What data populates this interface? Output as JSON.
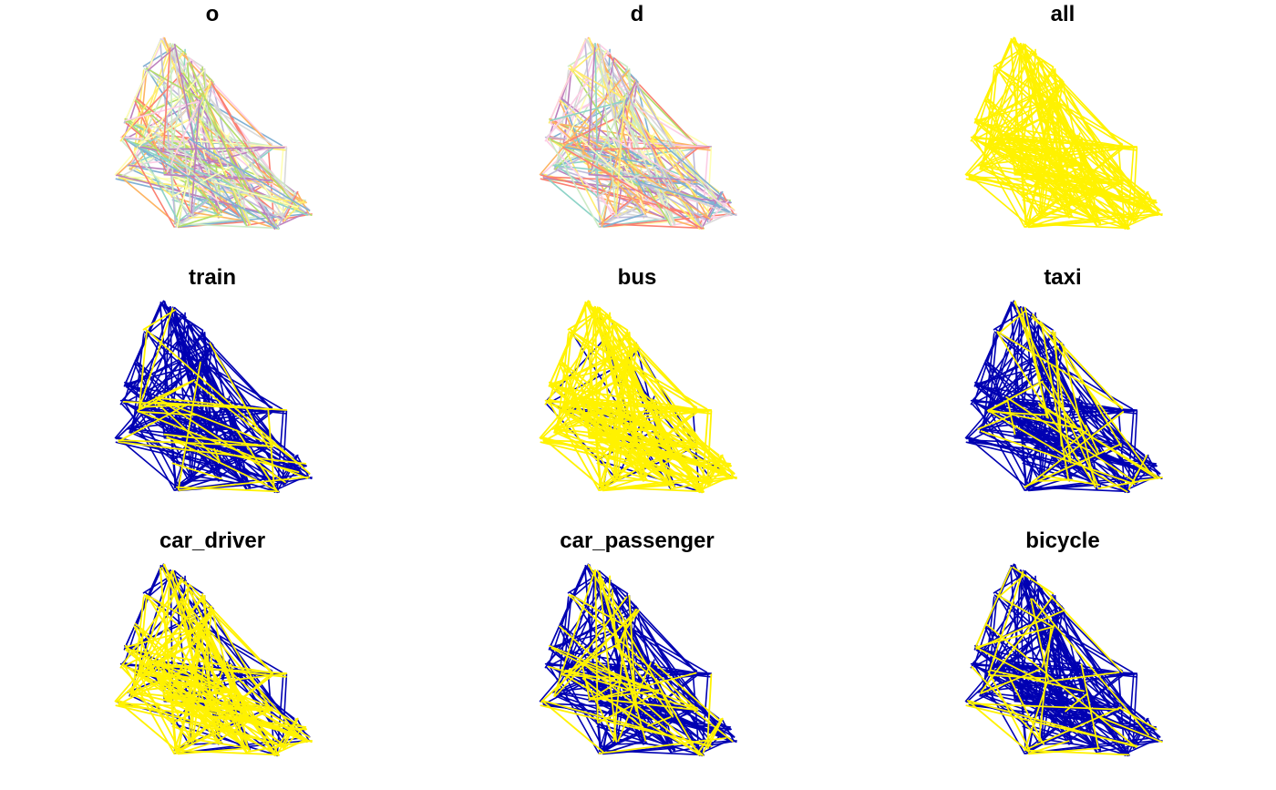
{
  "figure": {
    "description": "Faceted origin-destination desire line maps"
  },
  "colors": {
    "highlight": "#FFF200",
    "background_lines": "#0000B2",
    "palette": [
      "#8DD3C7",
      "#FDB462",
      "#BEBADA",
      "#FB8072",
      "#80B1D3",
      "#FFED6F",
      "#B3DE69",
      "#FCCDE5",
      "#D9D9D9",
      "#BC80BD",
      "#CCEBC5",
      "#FFFFB3"
    ]
  },
  "chart_data": [
    {
      "type": "map",
      "title": "o",
      "style": "categorical",
      "highlight_share": 1.0
    },
    {
      "type": "map",
      "title": "d",
      "style": "categorical",
      "highlight_share": 1.0
    },
    {
      "type": "map",
      "title": "all",
      "style": "single",
      "highlight_share": 1.0
    },
    {
      "type": "map",
      "title": "train",
      "style": "highlight",
      "highlight_share": 0.12
    },
    {
      "type": "map",
      "title": "bus",
      "style": "highlight",
      "highlight_share": 0.85
    },
    {
      "type": "map",
      "title": "taxi",
      "style": "highlight",
      "highlight_share": 0.12
    },
    {
      "type": "map",
      "title": "car_driver",
      "style": "highlight",
      "highlight_share": 0.7
    },
    {
      "type": "map",
      "title": "car_passenger",
      "style": "highlight",
      "highlight_share": 0.22
    },
    {
      "type": "map",
      "title": "bicycle",
      "style": "highlight",
      "highlight_share": 0.12
    }
  ]
}
